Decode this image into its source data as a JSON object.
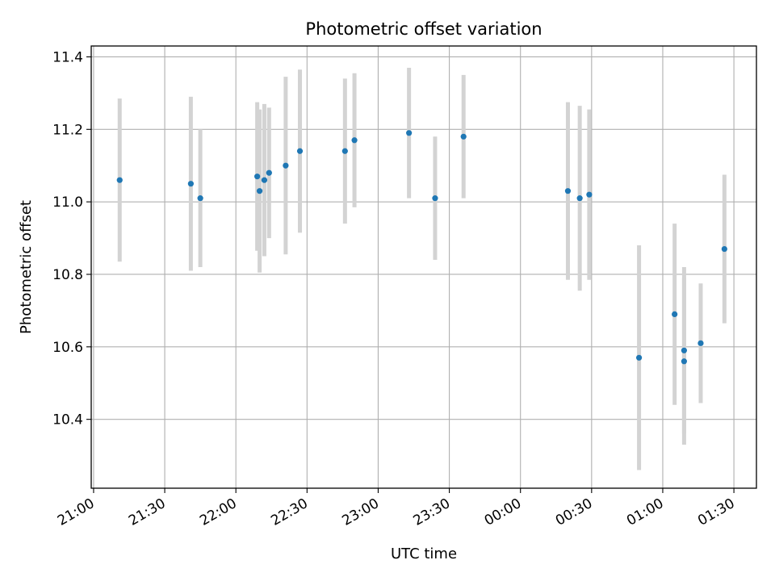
{
  "chart_data": {
    "type": "scatter",
    "title": "Photometric offset variation",
    "xlabel": "UTC time",
    "ylabel": "Photometric offset",
    "grid": true,
    "x_is_time_axis": true,
    "x_ticks": [
      "21:00",
      "21:30",
      "22:00",
      "22:30",
      "23:00",
      "23:30",
      "00:00",
      "00:30",
      "01:00",
      "01:30"
    ],
    "y_ticks": [
      "10.4",
      "10.6",
      "10.8",
      "11.0",
      "11.2",
      "11.4"
    ],
    "ylim": [
      10.21,
      11.43
    ],
    "colors": {
      "point": "#1f77b4",
      "errorbar": "#d3d3d3",
      "grid": "#b0b0b0"
    },
    "series": [
      {
        "points": [
          {
            "x": "21:11",
            "y": 11.06,
            "err": 0.225
          },
          {
            "x": "21:41",
            "y": 11.05,
            "err": 0.24
          },
          {
            "x": "21:45",
            "y": 11.01,
            "err": 0.19
          },
          {
            "x": "22:09",
            "y": 11.07,
            "err": 0.205
          },
          {
            "x": "22:10",
            "y": 11.03,
            "err": 0.225
          },
          {
            "x": "22:12",
            "y": 11.06,
            "err": 0.21
          },
          {
            "x": "22:14",
            "y": 11.08,
            "err": 0.18
          },
          {
            "x": "22:21",
            "y": 11.1,
            "err": 0.245
          },
          {
            "x": "22:27",
            "y": 11.14,
            "err": 0.225
          },
          {
            "x": "22:46",
            "y": 11.14,
            "err": 0.2
          },
          {
            "x": "22:50",
            "y": 11.17,
            "err": 0.185
          },
          {
            "x": "23:13",
            "y": 11.19,
            "err": 0.18
          },
          {
            "x": "23:24",
            "y": 11.01,
            "err": 0.17
          },
          {
            "x": "23:36",
            "y": 11.18,
            "err": 0.17
          },
          {
            "x": "00:20",
            "y": 11.03,
            "err": 0.245
          },
          {
            "x": "00:25",
            "y": 11.01,
            "err": 0.255
          },
          {
            "x": "00:29",
            "y": 11.02,
            "err": 0.235
          },
          {
            "x": "00:50",
            "y": 10.57,
            "err": 0.31
          },
          {
            "x": "01:05",
            "y": 10.69,
            "err": 0.25
          },
          {
            "x": "01:09",
            "y": 10.59,
            "err": 0.23
          },
          {
            "x": "01:09",
            "y": 10.56,
            "err": 0.23
          },
          {
            "x": "01:16",
            "y": 10.61,
            "err": 0.165
          },
          {
            "x": "01:26",
            "y": 10.87,
            "err": 0.205
          }
        ]
      }
    ]
  }
}
